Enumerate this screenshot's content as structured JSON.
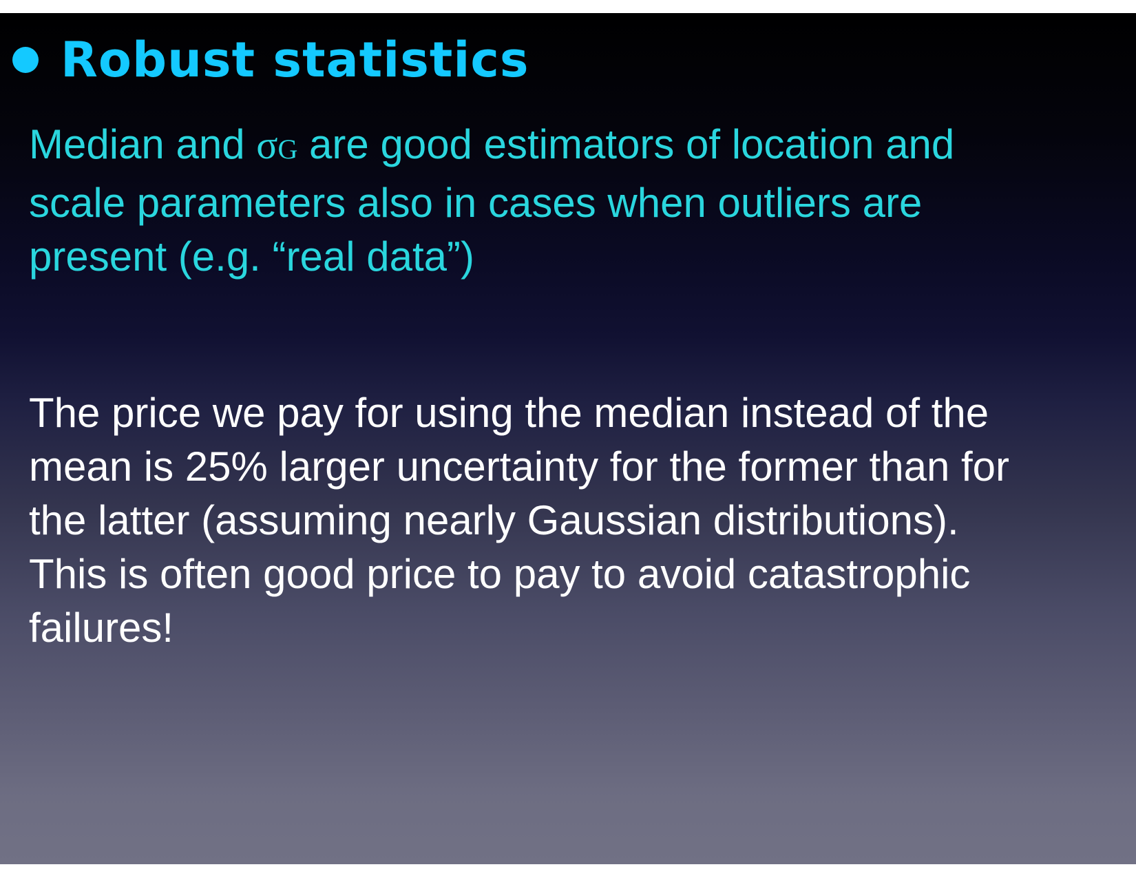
{
  "slide": {
    "title": "Robust statistics",
    "paragraph1": {
      "before_symbol": "Median and ",
      "symbol": "σ",
      "symbol_subscript": "G",
      "after_symbol": " are good estimators of location and",
      "line2": "scale parameters also in cases when outliers are",
      "line3": "present (e.g. “real data”)"
    },
    "paragraph2": {
      "line1": "The price we pay for using the median instead of the",
      "line2": "mean is 25% larger uncertainty for the former than for",
      "line3": "the latter (assuming nearly Gaussian distributions).",
      "line4": "This is often good price to pay to avoid catastrophic",
      "line5": "failures!"
    }
  },
  "colors": {
    "title": "#14c9ff",
    "paragraph1": "#2ad6de",
    "paragraph2": "#ffffff",
    "background_top": "#000000",
    "background_bottom": "#717185"
  }
}
